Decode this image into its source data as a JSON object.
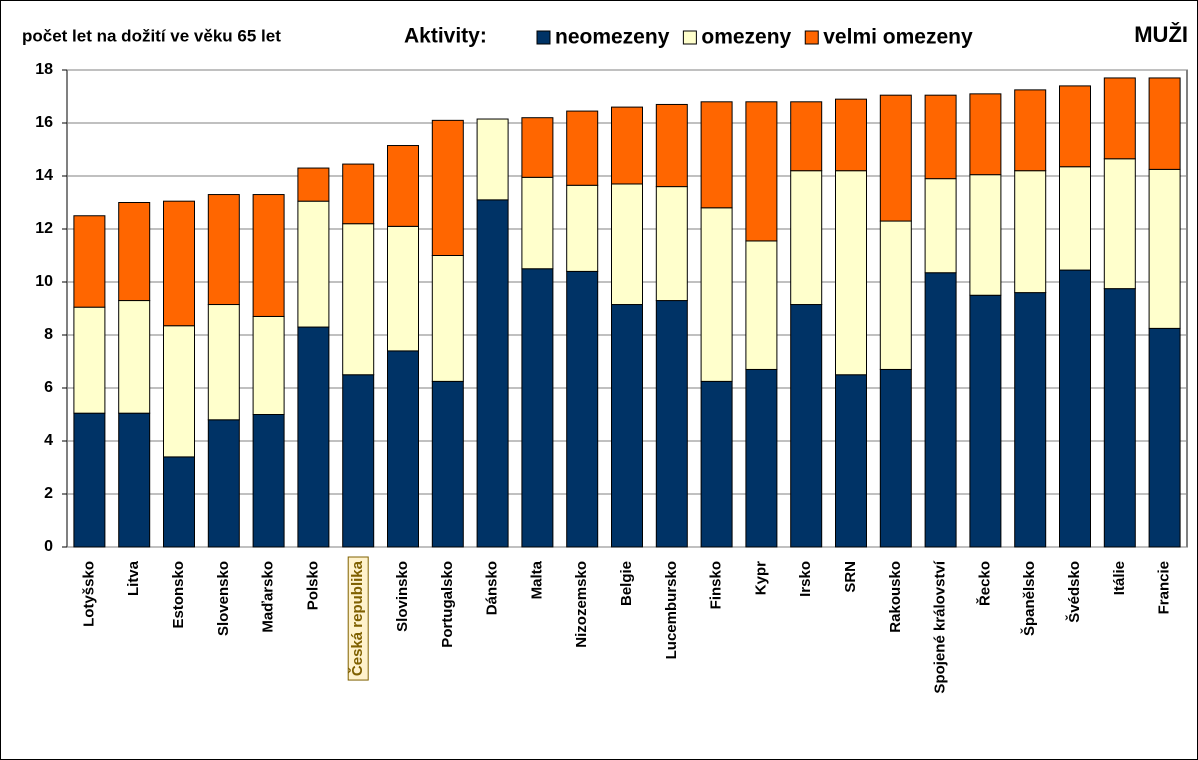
{
  "chart_data": {
    "type": "stacked_bar",
    "title": "počet let na dožití ve věku 65 let",
    "legend_title": "Aktivity:",
    "label": "MUŽI",
    "categories": [
      "Lotyšsko",
      "Litva",
      "Estonsko",
      "Slovensko",
      "Maďarsko",
      "Polsko",
      "Česká republika",
      "Slovinsko",
      "Portugalsko",
      "Dánsko",
      "Malta",
      "Nizozemsko",
      "Belgie",
      "Lucembursko",
      "Finsko",
      "Kypr",
      "Irsko",
      "SRN",
      "Rakousko",
      "Spojené království",
      "Řecko",
      "Španělsko",
      "Švédsko",
      "Itálie",
      "Francie"
    ],
    "highlight": 6,
    "series": [
      {
        "name": "neomezeny",
        "color": "#003366",
        "values": [
          5.05,
          5.05,
          3.4,
          4.8,
          5.0,
          8.3,
          6.5,
          7.4,
          6.25,
          13.1,
          10.5,
          10.4,
          9.15,
          9.3,
          6.25,
          6.7,
          9.15,
          6.5,
          6.7,
          10.35,
          9.5,
          9.6,
          10.45,
          9.75,
          8.25
        ]
      },
      {
        "name": "omezeny",
        "color": "#ffffcc",
        "values": [
          4.0,
          4.25,
          4.95,
          4.35,
          3.7,
          4.75,
          5.7,
          4.7,
          4.75,
          3.05,
          3.45,
          3.25,
          4.55,
          4.3,
          6.55,
          4.85,
          5.05,
          7.7,
          5.6,
          3.55,
          4.55,
          4.6,
          3.9,
          4.9,
          6.0
        ]
      },
      {
        "name": "velmi omezeny",
        "color": "#ff6600",
        "values": [
          3.45,
          3.7,
          4.7,
          4.15,
          4.6,
          1.25,
          2.25,
          3.05,
          5.1,
          0,
          2.25,
          2.8,
          2.9,
          3.1,
          4.0,
          5.25,
          2.6,
          2.7,
          4.75,
          3.15,
          3.05,
          3.05,
          3.05,
          3.05,
          3.45
        ]
      }
    ],
    "ylim": [
      0,
      18
    ],
    "yticks": [
      0,
      2,
      4,
      6,
      8,
      10,
      12,
      14,
      16,
      18
    ],
    "grid": true
  }
}
